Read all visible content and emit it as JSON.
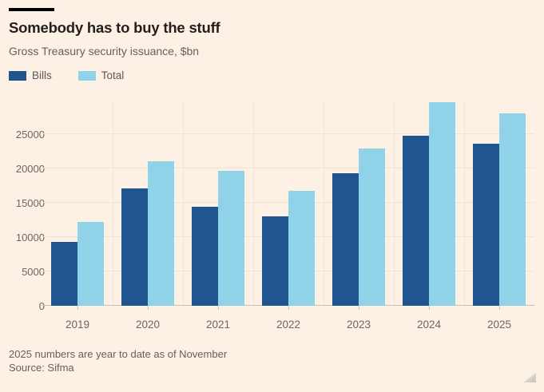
{
  "header": {
    "title": "Somebody has to buy the stuff",
    "subtitle": "Gross Treasury security issuance, $bn"
  },
  "chart_data": {
    "type": "bar",
    "title": "Somebody has to buy the stuff",
    "subtitle": "Gross Treasury security issuance, $bn",
    "categories": [
      "2019",
      "2020",
      "2021",
      "2022",
      "2023",
      "2024",
      "2025"
    ],
    "series": [
      {
        "name": "Bills",
        "color": "#20568f",
        "values": [
          9300,
          17100,
          14400,
          13000,
          19300,
          24800,
          23600
        ]
      },
      {
        "name": "Total",
        "color": "#90d2e8",
        "values": [
          12200,
          21000,
          19700,
          16800,
          22900,
          29600,
          28000
        ]
      }
    ],
    "ylabel": "",
    "xlabel": "",
    "ylim": [
      0,
      30000
    ],
    "yticks": [
      0,
      5000,
      10000,
      15000,
      20000,
      25000
    ],
    "grid": true,
    "legend_position": "top-left"
  },
  "footer": {
    "note": "2025 numbers are year to date as of November",
    "source": "Source: Sifma"
  },
  "colors": {
    "background": "#fdf0e4",
    "bills": "#20568f",
    "total": "#90d2e8",
    "title_text": "#221f1c",
    "muted_text": "#67615b",
    "gridline": "#f3e2d2",
    "axis_line": "#ccc0b4",
    "top_rule": "#000000"
  }
}
